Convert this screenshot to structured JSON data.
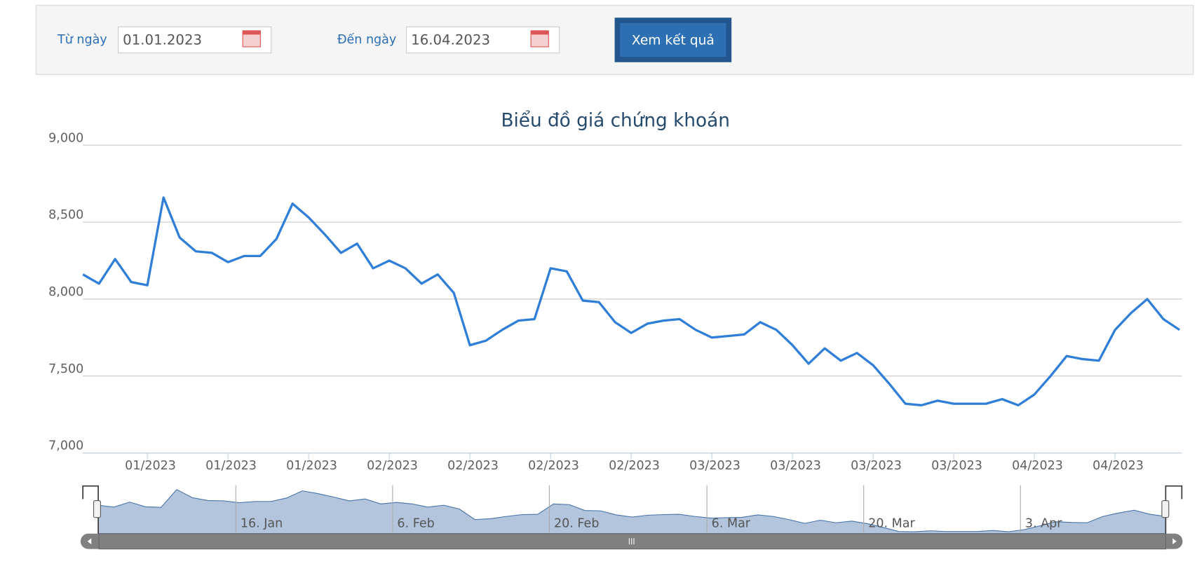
{
  "form": {
    "from_label": "Từ ngày",
    "from_value": "01.01.2023",
    "to_label": "Đến ngày",
    "to_value": "16.04.2023",
    "button": "Xem kết quả"
  },
  "chart_data": {
    "type": "line",
    "title": "Biểu đồ giá chứng khoán",
    "categories": [
      null,
      null,
      null,
      null,
      "01/2023",
      null,
      null,
      null,
      null,
      "01/2023",
      null,
      null,
      null,
      null,
      "01/2023",
      null,
      null,
      null,
      null,
      "02/2023",
      null,
      null,
      null,
      null,
      "02/2023",
      null,
      null,
      null,
      null,
      "02/2023",
      null,
      null,
      null,
      null,
      "02/2023",
      null,
      null,
      null,
      null,
      "03/2023",
      null,
      null,
      null,
      null,
      "03/2023",
      null,
      null,
      null,
      null,
      "03/2023",
      null,
      null,
      null,
      null,
      "03/2023",
      null,
      null,
      null,
      null,
      "04/2023",
      null,
      null,
      null,
      null,
      "04/2023",
      null,
      null,
      null,
      null
    ],
    "series": [
      {
        "color": "#2f7ed8",
        "values": [
          8160,
          8100,
          8260,
          8110,
          8090,
          8660,
          8400,
          8310,
          8300,
          8240,
          8280,
          8280,
          8390,
          8620,
          8530,
          8420,
          8300,
          8360,
          8200,
          8250,
          8200,
          8100,
          8160,
          8040,
          7700,
          7730,
          7800,
          7860,
          7870,
          8200,
          8180,
          7990,
          7980,
          7850,
          7780,
          7840,
          7860,
          7870,
          7800,
          7750,
          7760,
          7770,
          7850,
          7800,
          7700,
          7580,
          7680,
          7600,
          7650,
          7570,
          7450,
          7320,
          7310,
          7340,
          7320,
          7320,
          7320,
          7350,
          7310,
          7380,
          7500,
          7630,
          7610,
          7600,
          7800,
          7910,
          8000,
          7870,
          7800
        ]
      }
    ],
    "ylim": [
      7000,
      9000
    ],
    "yticks": [
      {
        "value": 7000,
        "label": "7,000"
      },
      {
        "value": 7500,
        "label": "7,500"
      },
      {
        "value": 8000,
        "label": "8,000"
      },
      {
        "value": 8500,
        "label": "8,500"
      },
      {
        "value": 9000,
        "label": "9,000"
      }
    ],
    "grid": true,
    "navigator_labels": [
      "16. Jan",
      "6. Feb",
      "20. Feb",
      "6. Mar",
      "20. Mar",
      "3. Apr"
    ]
  }
}
